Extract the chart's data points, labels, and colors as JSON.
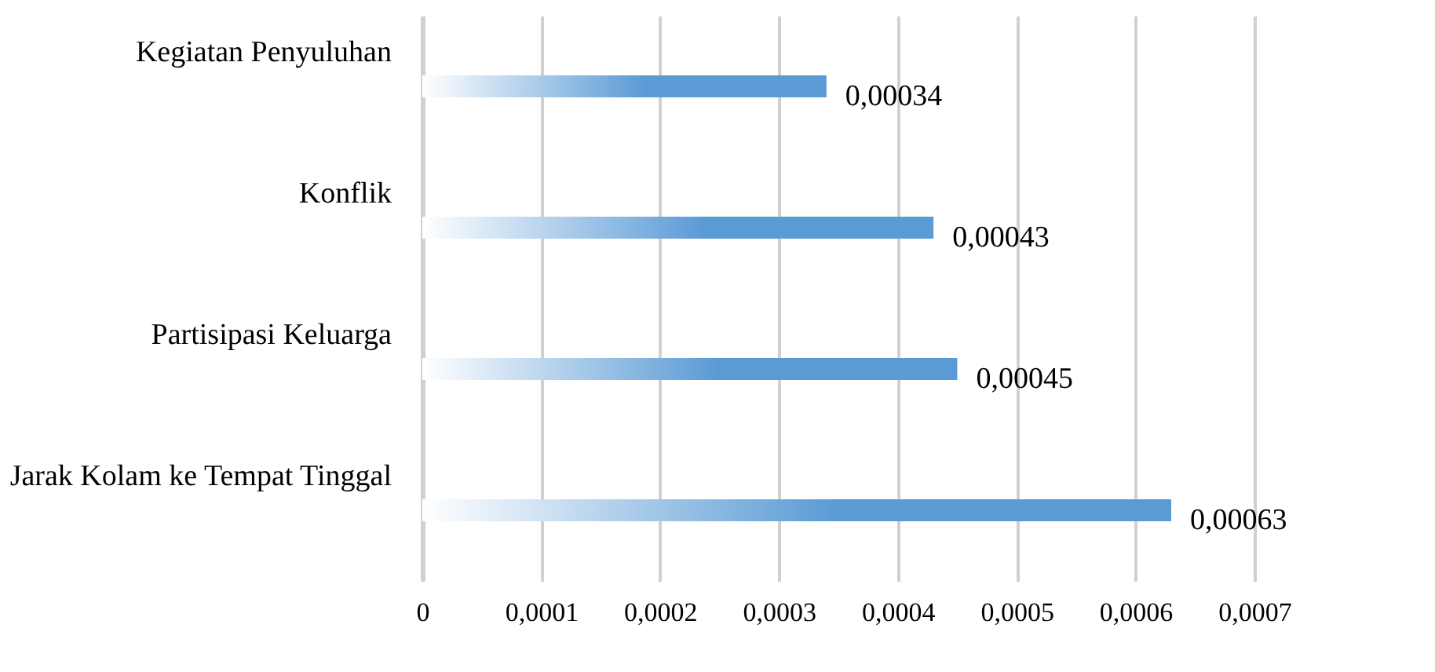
{
  "chart_data": {
    "type": "bar",
    "orientation": "horizontal",
    "categories": [
      "Kegiatan Penyuluhan",
      "Konflik",
      "Partisipasi Keluarga",
      "Jarak Kolam ke Tempat Tinggal"
    ],
    "values": [
      0.00034,
      0.00043,
      0.00045,
      0.00063
    ],
    "value_labels": [
      "0,00034",
      "0,00043",
      "0,00045",
      "0,00063"
    ],
    "color": "#5b9bd5",
    "xlim": [
      0,
      0.0007
    ],
    "xticks": [
      0,
      {
        "value": 0.0001,
        "label": "0,0001"
      },
      {
        "value": 0.0002,
        "label": "0,0002"
      },
      {
        "value": 0.0003,
        "label": "0,0003"
      },
      {
        "value": 0.0004,
        "label": "0,0004"
      },
      {
        "value": 0.0005,
        "label": "0,0005"
      },
      {
        "value": 0.0006,
        "label": "0,0006"
      },
      {
        "value": 0.0007,
        "label": "0,0007"
      }
    ],
    "grid": "x"
  }
}
